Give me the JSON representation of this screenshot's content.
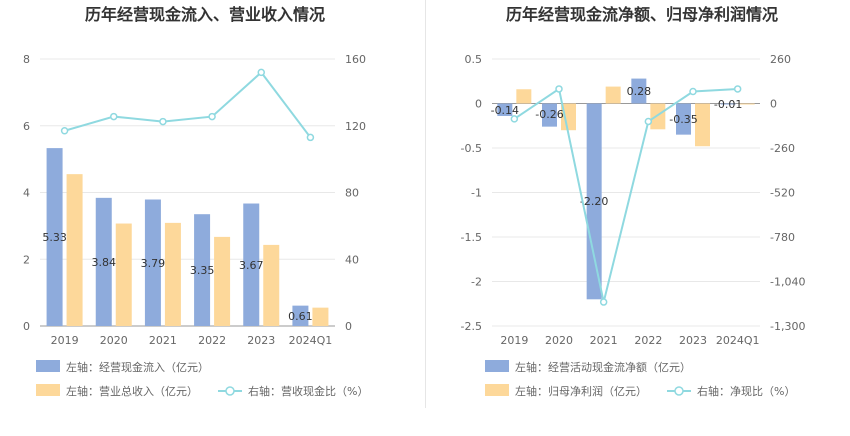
{
  "charts": [
    {
      "type": "bar+line",
      "title": "历年经营现金流入、营业收入情况",
      "categories": [
        "2019",
        "2020",
        "2021",
        "2022",
        "2023",
        "2024Q1"
      ],
      "left_axis": {
        "min": 0,
        "max": 8,
        "ticks": [
          "0",
          "2",
          "4",
          "6",
          "8"
        ]
      },
      "right_axis": {
        "min": 0,
        "max": 160,
        "ticks": [
          "0",
          "40",
          "80",
          "120",
          "160"
        ]
      },
      "series": [
        {
          "name": "左轴：经营现金流入（亿元）",
          "kind": "bar",
          "color": "#8eabdc",
          "values": [
            5.33,
            3.84,
            3.79,
            3.35,
            3.67,
            0.61
          ],
          "labels": [
            "5.33",
            "3.84",
            "3.79",
            "3.35",
            "3.67",
            "0.61"
          ]
        },
        {
          "name": "左轴：营业总收入（亿元）",
          "kind": "bar",
          "color": "#fdd89a",
          "values": [
            4.55,
            3.07,
            3.09,
            2.67,
            2.43,
            0.55
          ]
        },
        {
          "name": "右轴：营收现金比（%）",
          "kind": "line",
          "color": "#8fd9e0",
          "values": [
            117,
            125.5,
            122.5,
            125.5,
            152,
            113
          ]
        }
      ]
    },
    {
      "type": "bar+line",
      "title": "历年经营现金流净额、归母净利润情况",
      "categories": [
        "2019",
        "2020",
        "2021",
        "2022",
        "2023",
        "2024Q1"
      ],
      "left_axis": {
        "min": -2.5,
        "max": 0.5,
        "ticks": [
          "-2.5",
          "-2",
          "-1.5",
          "-1",
          "-0.5",
          "0",
          "0.5"
        ]
      },
      "right_axis": {
        "min": -1300,
        "max": 260,
        "ticks": [
          "-1,300",
          "-1,040",
          "-780",
          "-520",
          "-260",
          "0",
          "260"
        ]
      },
      "series": [
        {
          "name": "左轴：经营活动现金流净额（亿元）",
          "kind": "bar",
          "color": "#8eabdc",
          "values": [
            -0.14,
            -0.26,
            -2.2,
            0.28,
            -0.35,
            -0.01
          ],
          "labels": [
            "-0.14",
            "-0.26",
            "-2.20",
            "0.28",
            "-0.35",
            "-0.01"
          ]
        },
        {
          "name": "左轴：归母净利润（亿元）",
          "kind": "bar",
          "color": "#fdd89a",
          "values": [
            0.16,
            -0.3,
            0.19,
            -0.29,
            -0.48,
            -0.005
          ]
        },
        {
          "name": "右轴：净现比（%）",
          "kind": "line",
          "color": "#8fd9e0",
          "values": [
            -90,
            85,
            -1160,
            -105,
            70,
            85
          ]
        }
      ]
    }
  ]
}
